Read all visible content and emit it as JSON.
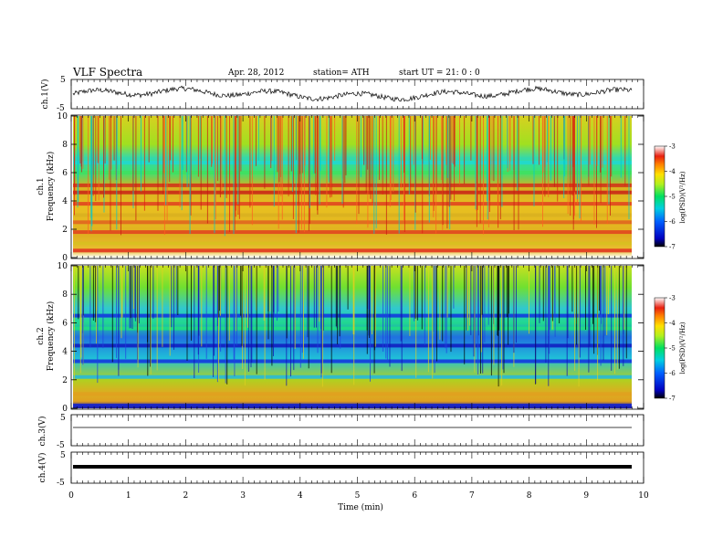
{
  "header": {
    "title": "VLF  Spectra",
    "date": "Apr. 28,  2012",
    "station": "station= ATH",
    "start": "start  UT  =    21: 0  : 0"
  },
  "chart_data": [
    {
      "type": "line",
      "ylabel": "ch.1(V)",
      "ylim": [
        -5,
        5
      ],
      "yticks": [
        "5",
        "-5"
      ],
      "description_of_trace": "noisy waveform"
    },
    {
      "type": "heatmap",
      "ylabel_top": "ch.1",
      "ylabel": "Frequency  (kHz)",
      "ylim": [
        0,
        10
      ],
      "yticks": [
        "0",
        "2",
        "4",
        "6",
        "8",
        "10"
      ],
      "colorbar": {
        "label": "log(PSD)(V²/Hz)",
        "range": [
          -7,
          -3
        ],
        "ticks": [
          "-3",
          "-4",
          "-5",
          "-6",
          "-7"
        ]
      },
      "bands": [
        {
          "freq": 0.5,
          "color": "#e03020"
        },
        {
          "freq": 1.0,
          "color": "#d8c020"
        },
        {
          "freq": 1.8,
          "color": "#e04020"
        },
        {
          "freq": 2.5,
          "color": "#e06020"
        },
        {
          "freq": 3.0,
          "color": "#d8b020"
        },
        {
          "freq": 3.8,
          "color": "#e04020"
        },
        {
          "freq": 4.6,
          "color": "#c82018"
        },
        {
          "freq": 5.1,
          "color": "#d03018"
        },
        {
          "freq": 6.0,
          "color": "#40e060"
        },
        {
          "freq": 6.7,
          "color": "#20d8d0"
        }
      ]
    },
    {
      "type": "heatmap",
      "ylabel_top": "ch.2",
      "ylabel": "Frequency  (kHz)",
      "ylim": [
        0,
        10
      ],
      "yticks": [
        "0",
        "2",
        "4",
        "6",
        "8",
        "10"
      ],
      "colorbar": {
        "label": "log(PSD)(V²/Hz)",
        "range": [
          -7,
          -3
        ],
        "ticks": [
          "-3",
          "-4",
          "-5",
          "-6",
          "-7"
        ]
      },
      "bands": [
        {
          "freq": 0.2,
          "color": "#1020d0"
        },
        {
          "freq": 1.0,
          "color": "#e0a020"
        },
        {
          "freq": 2.2,
          "color": "#20b8e0"
        },
        {
          "freq": 3.3,
          "color": "#1030e0"
        },
        {
          "freq": 4.4,
          "color": "#1018c0"
        },
        {
          "freq": 5.6,
          "color": "#20e080"
        },
        {
          "freq": 6.5,
          "color": "#1030e0"
        }
      ]
    },
    {
      "type": "line",
      "ylabel": "ch.3(V)",
      "ylim": [
        -5,
        5
      ],
      "yticks": [
        "5",
        "-5"
      ]
    },
    {
      "type": "line",
      "ylabel": "ch.4(V)",
      "ylim": [
        -5,
        5
      ],
      "yticks": [
        "5",
        "-5"
      ]
    }
  ],
  "xaxis": {
    "label": "Time  (min)",
    "xlim": [
      0,
      10
    ],
    "ticks": [
      "0",
      "1",
      "2",
      "3",
      "4",
      "5",
      "6",
      "7",
      "8",
      "9",
      "10"
    ]
  }
}
